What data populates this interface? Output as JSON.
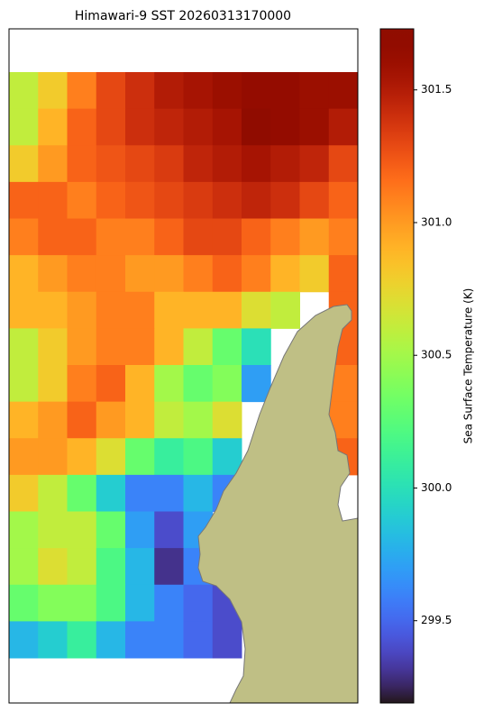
{
  "chart_data": {
    "type": "heatmap",
    "title": "Himawari-9 SST 20260313170000",
    "colorbar": {
      "label": "Sea Surface Temperature (K)",
      "lim": [
        299.19,
        301.73
      ],
      "ticks": [
        299.5,
        {
          "value": 300,
          "label": "300.0"
        },
        300.5,
        {
          "value": 301,
          "label": "301.0"
        },
        301.5
      ],
      "colormap": "turbo"
    },
    "land_color": "#bfbf85",
    "z": [
      [
        300.6,
        300.8,
        301.1,
        301.3,
        301.4,
        301.5,
        301.55,
        301.6,
        301.65,
        301.65,
        301.6,
        301.6
      ],
      [
        300.6,
        300.9,
        301.2,
        301.3,
        301.4,
        301.45,
        301.5,
        301.55,
        301.7,
        301.65,
        301.6,
        301.5
      ],
      [
        300.8,
        301.0,
        301.2,
        301.25,
        301.3,
        301.35,
        301.45,
        301.5,
        301.55,
        301.5,
        301.45,
        301.3
      ],
      [
        301.2,
        301.2,
        301.1,
        301.2,
        301.25,
        301.3,
        301.35,
        301.4,
        301.45,
        301.4,
        301.3,
        301.2
      ],
      [
        301.1,
        301.2,
        301.2,
        301.1,
        301.1,
        301.2,
        301.3,
        301.3,
        301.2,
        301.1,
        301.0,
        301.1
      ],
      [
        300.9,
        301.0,
        301.1,
        301.1,
        301.0,
        301.0,
        301.1,
        301.2,
        301.1,
        300.9,
        300.8,
        301.2
      ],
      [
        300.9,
        300.9,
        301.0,
        301.1,
        301.1,
        300.9,
        300.9,
        300.9,
        300.7,
        300.6,
        null,
        301.2
      ],
      [
        300.6,
        300.8,
        301.0,
        301.1,
        301.1,
        300.9,
        300.6,
        300.3,
        300.0,
        null,
        null,
        301.2
      ],
      [
        300.6,
        300.8,
        301.1,
        301.2,
        300.9,
        300.5,
        300.3,
        300.4,
        299.7,
        null,
        null,
        301.1
      ],
      [
        300.9,
        301.0,
        301.2,
        301.0,
        300.9,
        300.6,
        300.5,
        300.7,
        null,
        null,
        null,
        301.1
      ],
      [
        301.0,
        301.0,
        300.9,
        300.7,
        300.3,
        300.1,
        300.2,
        299.9,
        null,
        null,
        null,
        301.2
      ],
      [
        300.8,
        300.6,
        300.3,
        299.9,
        299.6,
        299.6,
        299.8,
        299.6,
        null,
        null,
        null,
        null
      ],
      [
        300.5,
        300.6,
        300.6,
        300.3,
        299.7,
        299.4,
        299.7,
        null,
        null,
        null,
        null,
        null
      ],
      [
        300.5,
        300.7,
        300.6,
        300.2,
        299.8,
        299.3,
        299.6,
        null,
        null,
        null,
        null,
        null
      ],
      [
        300.3,
        300.4,
        300.4,
        300.2,
        299.8,
        299.6,
        299.5,
        299.4,
        null,
        null,
        null,
        null
      ],
      [
        299.8,
        299.9,
        300.1,
        299.8,
        299.6,
        299.6,
        299.5,
        299.4,
        null,
        null,
        null,
        null
      ]
    ]
  }
}
